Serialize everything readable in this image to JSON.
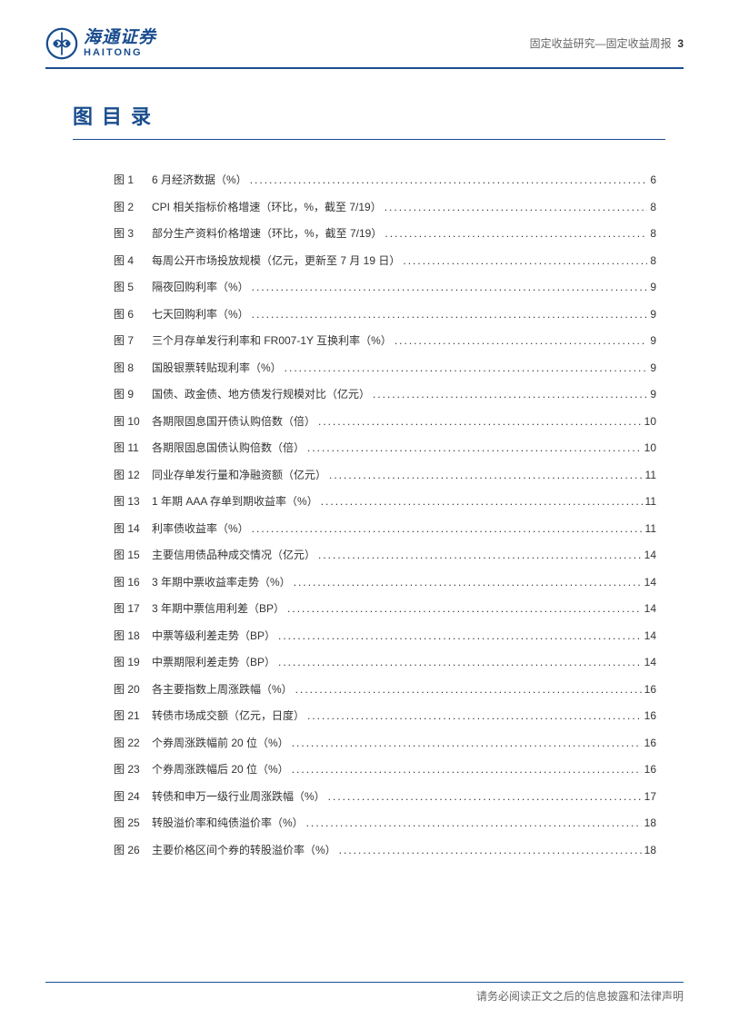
{
  "header": {
    "logo_cn": "海通证券",
    "logo_en": "HAITONG",
    "breadcrumb": "固定收益研究—固定收益周报",
    "page_number": "3"
  },
  "section": {
    "title": "图目录"
  },
  "toc": [
    {
      "label": "图 1",
      "title": "6 月经济数据（%）",
      "page": "6"
    },
    {
      "label": "图 2",
      "title": "CPI 相关指标价格增速（环比，%，截至 7/19）",
      "page": "8"
    },
    {
      "label": "图 3",
      "title": "部分生产资料价格增速（环比，%，截至 7/19）",
      "page": "8"
    },
    {
      "label": "图 4",
      "title": "每周公开市场投放规模（亿元，更新至 7 月 19 日）",
      "page": "8"
    },
    {
      "label": "图 5",
      "title": "隔夜回购利率（%）",
      "page": "9"
    },
    {
      "label": "图 6",
      "title": "七天回购利率（%）",
      "page": "9"
    },
    {
      "label": "图 7",
      "title": "三个月存单发行利率和 FR007-1Y 互换利率（%）",
      "page": "9"
    },
    {
      "label": "图 8",
      "title": "国股银票转贴现利率（%）",
      "page": "9"
    },
    {
      "label": "图 9",
      "title": "国债、政金债、地方债发行规模对比（亿元）",
      "page": "9"
    },
    {
      "label": "图 10",
      "title": "各期限固息国开债认购倍数（倍）",
      "page": "10"
    },
    {
      "label": "图 11",
      "title": "各期限固息国债认购倍数（倍）",
      "page": "10"
    },
    {
      "label": "图 12",
      "title": "同业存单发行量和净融资额（亿元）",
      "page": "11"
    },
    {
      "label": "图 13",
      "title": "1 年期 AAA 存单到期收益率（%）",
      "page": "11"
    },
    {
      "label": "图 14",
      "title": "利率债收益率（%）",
      "page": "11"
    },
    {
      "label": "图 15",
      "title": "主要信用债品种成交情况（亿元）",
      "page": "14"
    },
    {
      "label": "图 16",
      "title": "3 年期中票收益率走势（%）",
      "page": "14"
    },
    {
      "label": "图 17",
      "title": "3 年期中票信用利差（BP）",
      "page": "14"
    },
    {
      "label": "图 18",
      "title": "中票等级利差走势（BP）",
      "page": "14"
    },
    {
      "label": "图 19",
      "title": "中票期限利差走势（BP）",
      "page": "14"
    },
    {
      "label": "图 20",
      "title": "各主要指数上周涨跌幅（%）",
      "page": "16"
    },
    {
      "label": "图 21",
      "title": "转债市场成交额（亿元，日度）",
      "page": "16"
    },
    {
      "label": "图 22",
      "title": "个券周涨跌幅前 20 位（%）",
      "page": "16"
    },
    {
      "label": "图 23",
      "title": "个券周涨跌幅后 20 位（%）",
      "page": "16"
    },
    {
      "label": "图 24",
      "title": "转债和申万一级行业周涨跌幅（%）",
      "page": "17"
    },
    {
      "label": "图 25",
      "title": "转股溢价率和纯债溢价率（%）",
      "page": "18"
    },
    {
      "label": "图 26",
      "title": "主要价格区间个券的转股溢价率（%）",
      "page": "18"
    }
  ],
  "footer": {
    "text": "请务必阅读正文之后的信息披露和法律声明"
  },
  "colors": {
    "primary": "#1a4d8f",
    "text": "#333333",
    "muted": "#666666"
  }
}
